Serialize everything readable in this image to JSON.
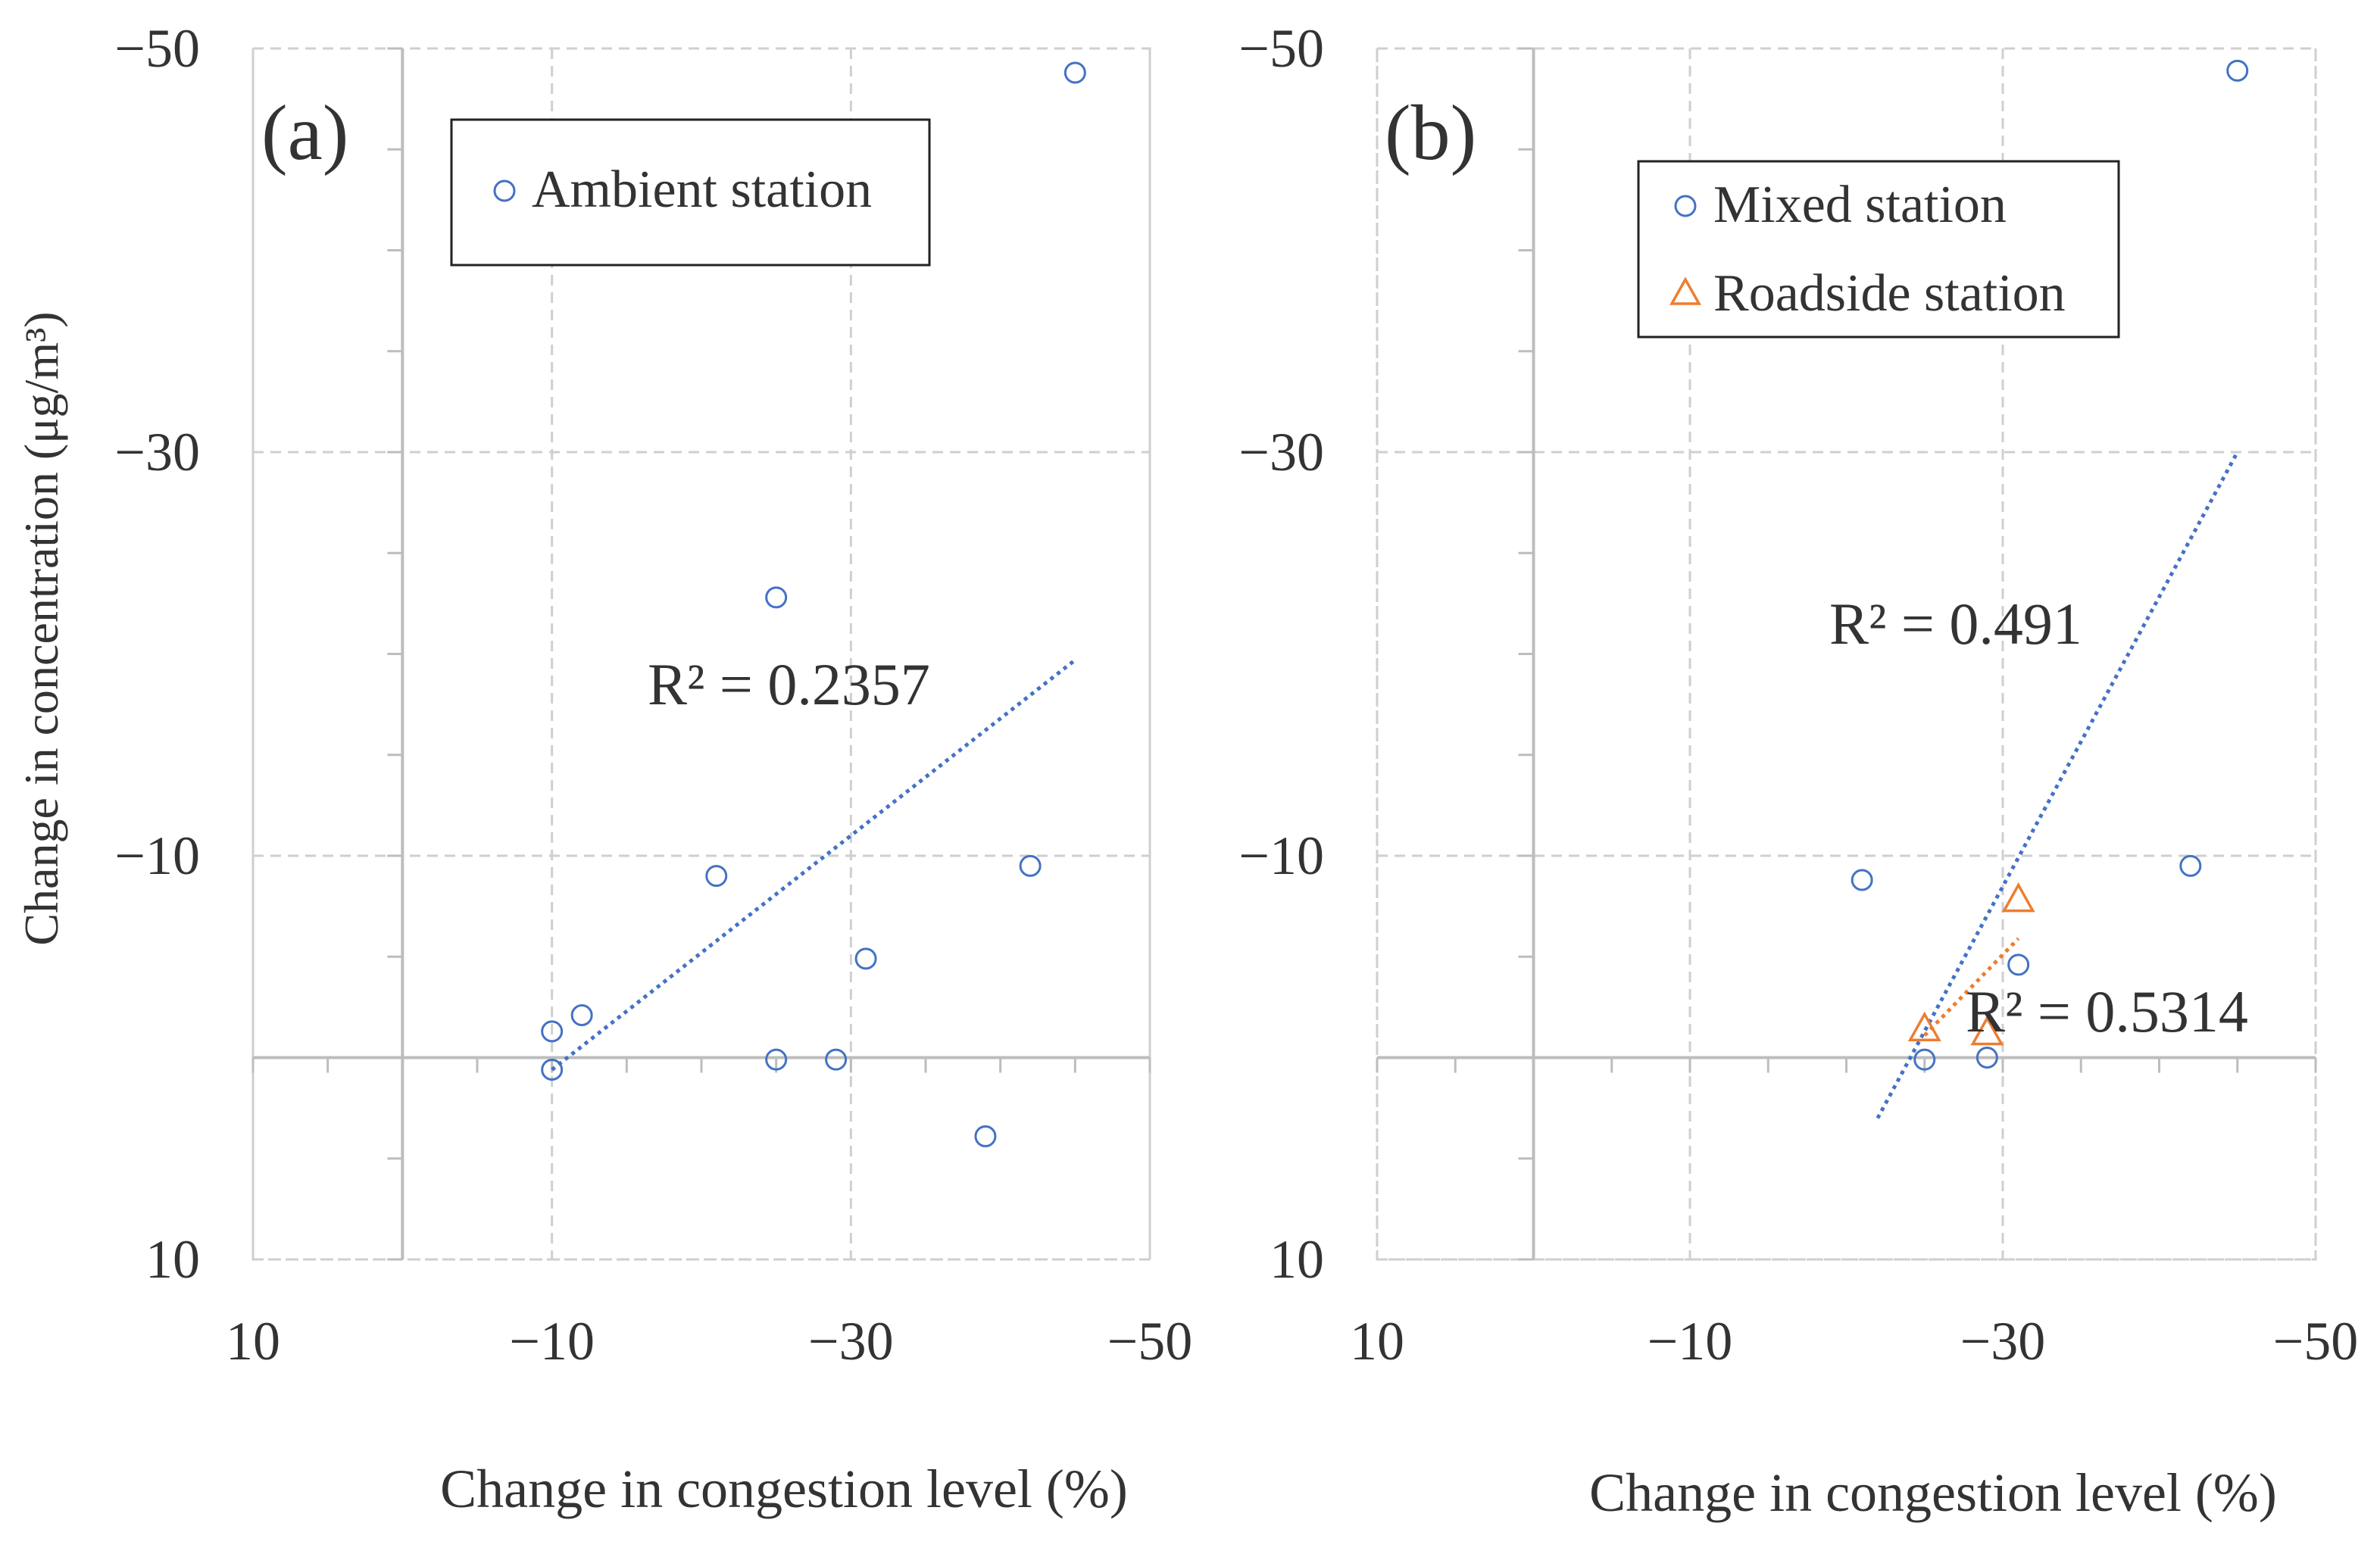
{
  "ylabel": "Change in concentration (μg/m³)",
  "chart_data": [
    {
      "type": "scatter",
      "panel_label": "(a)",
      "xlabel": "Change in congestion level (%)",
      "ylabel": "Change in concentration (μg/m³)",
      "xlim": [
        10,
        -50
      ],
      "ylim": [
        10,
        -50
      ],
      "xticks": [
        "10",
        "−10",
        "−30",
        "−50"
      ],
      "yticks": [
        "10",
        "−10",
        "−30",
        "−50"
      ],
      "grid": true,
      "legend_position": "top-left",
      "series": [
        {
          "name": "Ambient station",
          "marker": "circle",
          "color": "#4472c4",
          "points": [
            {
              "x": -10,
              "y": -1.3
            },
            {
              "x": -10,
              "y": 0.6
            },
            {
              "x": -12,
              "y": -2.1
            },
            {
              "x": -21,
              "y": -9
            },
            {
              "x": -25,
              "y": -22.8
            },
            {
              "x": -25,
              "y": 0.1
            },
            {
              "x": -29,
              "y": 0.1
            },
            {
              "x": -31,
              "y": -4.9
            },
            {
              "x": -39,
              "y": 3.9
            },
            {
              "x": -42,
              "y": -9.5
            },
            {
              "x": -45,
              "y": -48.8
            }
          ],
          "trendline": {
            "x": [
              -10,
              -45
            ],
            "y": [
              0.6,
              -19.7
            ],
            "r2_label": "R² = 0.2357"
          }
        }
      ]
    },
    {
      "type": "scatter",
      "panel_label": "(b)",
      "xlabel": "Change in congestion level (%)",
      "ylabel": "Change in concentration (μg/m³)",
      "xlim": [
        10,
        -50
      ],
      "ylim": [
        10,
        -50
      ],
      "xticks": [
        "10",
        "−10",
        "−30",
        "−50"
      ],
      "yticks": [
        "10",
        "−10",
        "−30",
        "−50"
      ],
      "grid": true,
      "legend_position": "top-right",
      "series": [
        {
          "name": "Mixed station",
          "marker": "circle",
          "color": "#4472c4",
          "points": [
            {
              "x": -21,
              "y": -8.8
            },
            {
              "x": -25,
              "y": 0.1
            },
            {
              "x": -29,
              "y": 0
            },
            {
              "x": -31,
              "y": -4.6
            },
            {
              "x": -42,
              "y": -9.5
            },
            {
              "x": -45,
              "y": -48.9
            }
          ],
          "trendline": {
            "x": [
              -22,
              -45
            ],
            "y": [
              3,
              -30
            ],
            "r2_label": "R² = 0.491"
          }
        },
        {
          "name": "Roadside station",
          "marker": "triangle",
          "color": "#ed7d31",
          "points": [
            {
              "x": -25,
              "y": -1.4
            },
            {
              "x": -29,
              "y": -1.2
            },
            {
              "x": -31,
              "y": -7.8
            }
          ],
          "trendline": {
            "x": [
              -25,
              -31
            ],
            "y": [
              -1.1,
              -5.9
            ],
            "r2_label": "R² = 0.5314"
          }
        }
      ]
    }
  ]
}
